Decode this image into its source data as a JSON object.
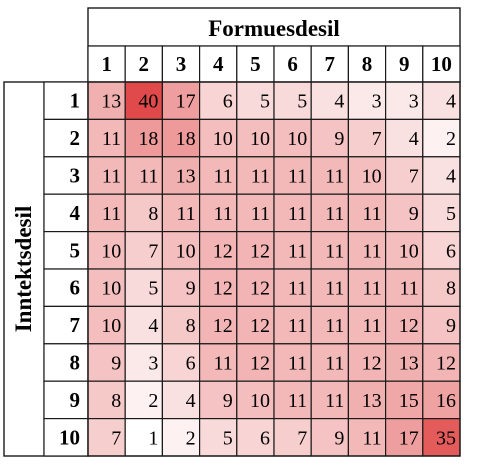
{
  "chart_data": {
    "type": "heatmap",
    "title": "",
    "xlabel": "Formuesdesil",
    "ylabel": "Inntektsdesil",
    "x_categories": [
      "1",
      "2",
      "3",
      "4",
      "5",
      "6",
      "7",
      "8",
      "9",
      "10"
    ],
    "y_categories": [
      "1",
      "2",
      "3",
      "4",
      "5",
      "6",
      "7",
      "8",
      "9",
      "10"
    ],
    "values": [
      [
        13,
        40,
        17,
        6,
        5,
        5,
        4,
        3,
        3,
        4
      ],
      [
        11,
        18,
        18,
        10,
        10,
        10,
        9,
        7,
        4,
        2
      ],
      [
        11,
        11,
        13,
        11,
        11,
        11,
        11,
        10,
        7,
        4
      ],
      [
        11,
        8,
        11,
        11,
        11,
        11,
        11,
        11,
        9,
        5
      ],
      [
        10,
        7,
        10,
        12,
        12,
        11,
        11,
        11,
        10,
        6
      ],
      [
        10,
        5,
        9,
        12,
        12,
        11,
        11,
        11,
        11,
        8
      ],
      [
        10,
        4,
        8,
        12,
        12,
        11,
        11,
        11,
        12,
        9
      ],
      [
        9,
        3,
        6,
        11,
        12,
        11,
        11,
        12,
        13,
        12
      ],
      [
        8,
        2,
        4,
        9,
        10,
        11,
        11,
        13,
        15,
        16
      ],
      [
        7,
        1,
        2,
        5,
        6,
        7,
        9,
        11,
        17,
        35
      ]
    ],
    "colors": {
      "low": "#ffffff",
      "high": "#e04a4a"
    }
  }
}
